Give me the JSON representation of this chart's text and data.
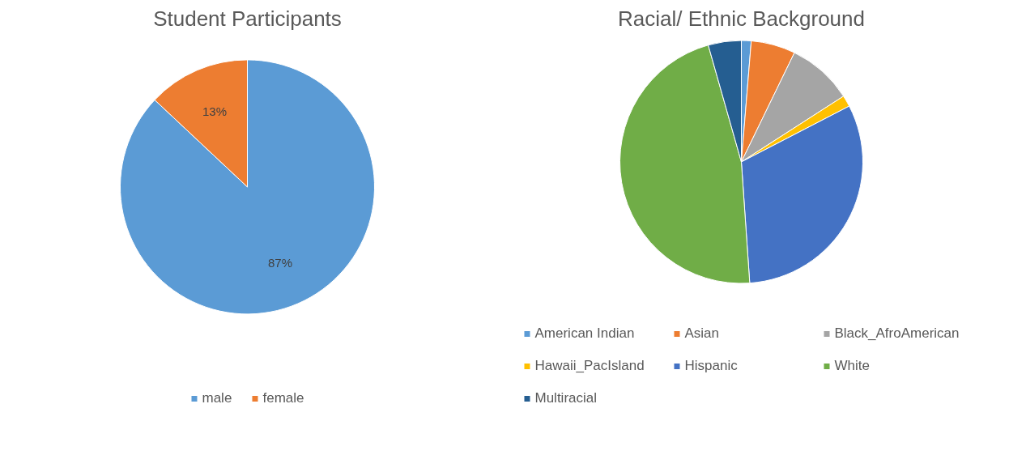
{
  "chart_data": [
    {
      "type": "pie",
      "title": "Student Participants",
      "categories": [
        "male",
        "female"
      ],
      "values": [
        87,
        13
      ],
      "colors": [
        "#5b9bd5",
        "#ed7d31"
      ],
      "value_labels": [
        "87%",
        "13%"
      ],
      "legend": "bottom"
    },
    {
      "type": "pie",
      "title": "Racial/ Ethnic Background",
      "categories": [
        "American Indian",
        "Asian",
        "Black_AfroAmerican",
        "Hawaii_PacIsland",
        "Hispanic",
        "White",
        "Multiracial"
      ],
      "values": [
        1.3,
        5.9,
        8.7,
        1.5,
        31.5,
        46.7,
        4.4
      ],
      "colors": [
        "#5b9bd5",
        "#ed7d31",
        "#a5a5a5",
        "#ffc000",
        "#4472c4",
        "#70ad47",
        "#255e91"
      ],
      "legend": "bottom"
    }
  ]
}
